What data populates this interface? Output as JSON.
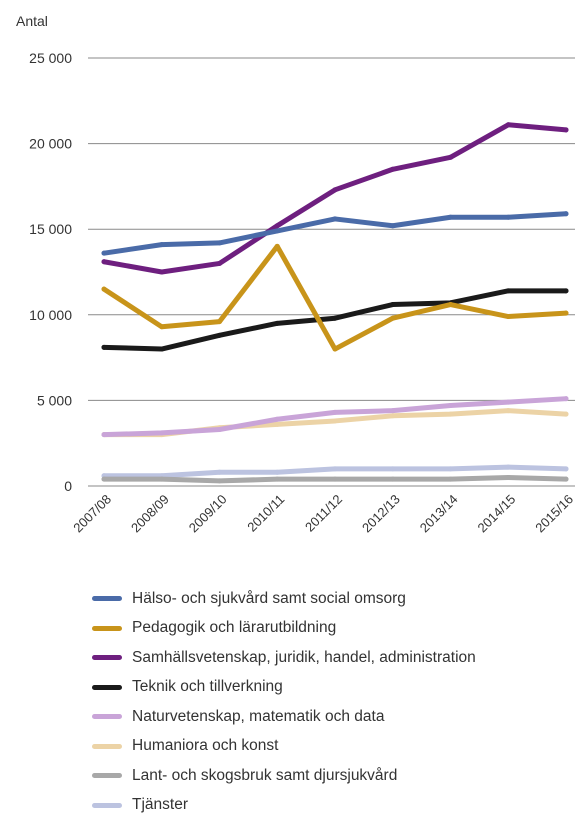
{
  "chart_data": {
    "type": "line",
    "ylabel": "Antal",
    "xlabel": "",
    "ylim": [
      0,
      25000
    ],
    "yticks": [
      {
        "value": 0,
        "label": "0"
      },
      {
        "value": 5000,
        "label": "5 000"
      },
      {
        "value": 10000,
        "label": "10 000"
      },
      {
        "value": 15000,
        "label": "15 000"
      },
      {
        "value": 20000,
        "label": "20 000"
      },
      {
        "value": 25000,
        "label": "25 000"
      }
    ],
    "grid": true,
    "legend_position": "bottom",
    "categories": [
      "2007/08",
      "2008/09",
      "2009/10",
      "2010/11",
      "2011/12",
      "2012/13",
      "2013/14",
      "2014/15",
      "2015/16"
    ],
    "series": [
      {
        "name": "Hälso- och sjukvård samt social omsorg",
        "color": "#4a6ba8",
        "values": [
          13600,
          14100,
          14200,
          14900,
          15600,
          15200,
          15700,
          15700,
          15900
        ]
      },
      {
        "name": "Pedagogik och lärarutbildning",
        "color": "#c8941a",
        "values": [
          11500,
          9300,
          9600,
          14000,
          8000,
          9800,
          10600,
          9900,
          10100
        ]
      },
      {
        "name": "Samhällsvetenskap, juridik, handel, administration",
        "color": "#6e1f7f",
        "values": [
          13100,
          12500,
          13000,
          15200,
          17300,
          18500,
          19200,
          21100,
          20800
        ]
      },
      {
        "name": "Teknik och tillverkning",
        "color": "#1a1a1a",
        "values": [
          8100,
          8000,
          8800,
          9500,
          9800,
          10600,
          10700,
          11400,
          11400
        ]
      },
      {
        "name": "Naturvetenskap, matematik och data",
        "color": "#c9a4d8",
        "values": [
          3000,
          3100,
          3300,
          3900,
          4300,
          4400,
          4700,
          4900,
          5100
        ]
      },
      {
        "name": "Humaniora och konst",
        "color": "#ecd3a6",
        "values": [
          3000,
          3000,
          3400,
          3600,
          3800,
          4100,
          4200,
          4400,
          4200
        ]
      },
      {
        "name": "Lant- och skogsbruk samt djursjukvård",
        "color": "#a8a8a8",
        "values": [
          400,
          400,
          300,
          400,
          400,
          400,
          400,
          500,
          400
        ]
      },
      {
        "name": "Tjänster",
        "color": "#bcc3e0",
        "values": [
          600,
          600,
          800,
          800,
          1000,
          1000,
          1000,
          1100,
          1000
        ]
      }
    ]
  }
}
